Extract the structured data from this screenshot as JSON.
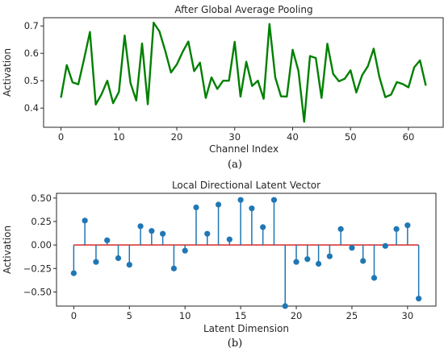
{
  "chart_data": [
    {
      "type": "line",
      "title": "After Global Average Pooling",
      "xlabel": "Channel Index",
      "ylabel": "Activation",
      "caption": "(a)",
      "xlim": [
        -3,
        66
      ],
      "ylim": [
        0.33,
        0.73
      ],
      "xticks": [
        0,
        10,
        20,
        30,
        40,
        50,
        60
      ],
      "yticks": [
        0.4,
        0.5,
        0.6,
        0.7
      ],
      "tick_decimals": 1,
      "color": "#008000",
      "series": [
        {
          "x": [
            0,
            1,
            2,
            3,
            4,
            5,
            6,
            7,
            8,
            9,
            10,
            11,
            12,
            13,
            14,
            15,
            16,
            17,
            18,
            19,
            20,
            21,
            22,
            23,
            24,
            25,
            26,
            27,
            28,
            29,
            30,
            31,
            32,
            33,
            34,
            35,
            36,
            37,
            38,
            39,
            40,
            41,
            42,
            43,
            44,
            45,
            46,
            47,
            48,
            49,
            50,
            51,
            52,
            53,
            54,
            55,
            56,
            57,
            58,
            59,
            60,
            61,
            62,
            63
          ],
          "values": [
            0.438,
            0.557,
            0.494,
            0.487,
            0.58,
            0.678,
            0.413,
            0.45,
            0.5,
            0.418,
            0.459,
            0.665,
            0.492,
            0.428,
            0.636,
            0.414,
            0.712,
            0.68,
            0.609,
            0.53,
            0.559,
            0.605,
            0.643,
            0.535,
            0.566,
            0.437,
            0.512,
            0.47,
            0.5,
            0.5,
            0.642,
            0.442,
            0.569,
            0.481,
            0.5,
            0.434,
            0.707,
            0.512,
            0.443,
            0.442,
            0.613,
            0.536,
            0.35,
            0.59,
            0.583,
            0.437,
            0.635,
            0.525,
            0.498,
            0.507,
            0.538,
            0.457,
            0.52,
            0.553,
            0.617,
            0.512,
            0.44,
            0.449,
            0.495,
            0.488,
            0.476,
            0.549,
            0.574,
            0.482
          ]
        }
      ]
    },
    {
      "type": "stem",
      "title": "Local Directional Latent Vector",
      "xlabel": "Latent Dimension",
      "ylabel": "Activation",
      "caption": "(b)",
      "xlim": [
        -1.55,
        32.55
      ],
      "ylim": [
        -0.65,
        0.55
      ],
      "xticks": [
        0,
        5,
        10,
        15,
        20,
        25,
        30
      ],
      "yticks": [
        -0.5,
        -0.25,
        0.0,
        0.25,
        0.5
      ],
      "tick_decimals": 2,
      "stem_color": "#1f77b4",
      "baseline_color": "#d62728",
      "series": [
        {
          "x": [
            0,
            1,
            2,
            3,
            4,
            5,
            6,
            7,
            8,
            9,
            10,
            11,
            12,
            13,
            14,
            15,
            16,
            17,
            18,
            19,
            20,
            21,
            22,
            23,
            24,
            25,
            26,
            27,
            28,
            29,
            30,
            31
          ],
          "values": [
            -0.3,
            0.26,
            -0.18,
            0.05,
            -0.14,
            -0.21,
            0.2,
            0.15,
            0.12,
            -0.25,
            -0.06,
            0.4,
            0.12,
            0.43,
            0.06,
            0.48,
            0.39,
            0.19,
            0.48,
            -0.65,
            -0.18,
            -0.15,
            -0.2,
            -0.12,
            0.17,
            -0.03,
            -0.17,
            -0.35,
            -0.01,
            0.17,
            0.21,
            -0.57
          ]
        }
      ]
    }
  ]
}
